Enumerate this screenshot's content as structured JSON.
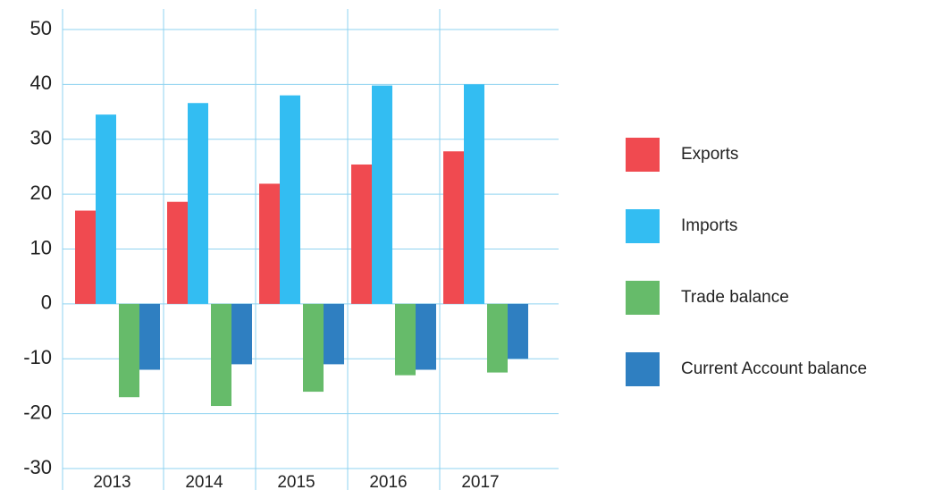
{
  "chart_data": {
    "type": "bar",
    "categories": [
      "2013",
      "2014",
      "2015",
      "2016",
      "2017"
    ],
    "series": [
      {
        "name": "Exports",
        "color": "#f04a50",
        "values": [
          17,
          18.6,
          21.9,
          25.4,
          27.8
        ]
      },
      {
        "name": "Imports",
        "color": "#33bdf2",
        "values": [
          34.5,
          36.6,
          38,
          39.8,
          40
        ]
      },
      {
        "name": "Trade balance",
        "color": "#66bb6a",
        "values": [
          -17,
          -18.6,
          -16,
          -13,
          -12.5
        ]
      },
      {
        "name": "Current Account balance",
        "color": "#2f7fc1",
        "values": [
          -12,
          -11,
          -11,
          -12,
          -10
        ]
      }
    ],
    "ylim": [
      -30,
      50
    ],
    "yticks": [
      -30,
      -20,
      -10,
      0,
      10,
      20,
      30,
      40,
      50
    ],
    "grid": true
  }
}
